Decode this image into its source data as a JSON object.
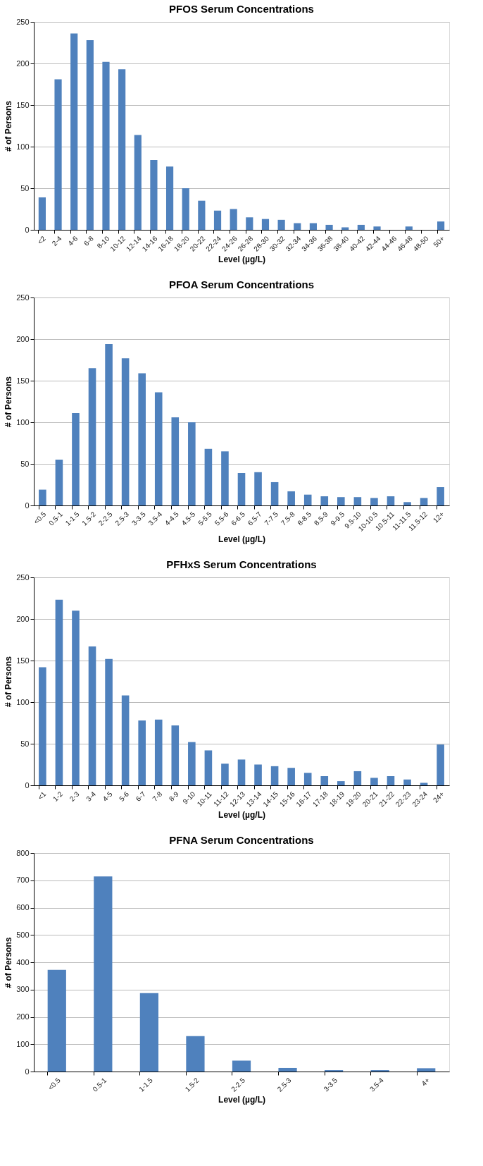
{
  "chart_data": [
    {
      "type": "bar",
      "title": "PFOS Serum Concentrations",
      "xlabel": "Level (µg/L)",
      "ylabel": "# of Persons",
      "categories": [
        "<2",
        "2-4",
        "4-6",
        "6-8",
        "8-10",
        "10-12",
        "12-14",
        "14-16",
        "16-18",
        "18-20",
        "20-22",
        "22-24",
        "24-26",
        "26-28",
        "28-30",
        "30-32",
        "32-34",
        "34-36",
        "36-38",
        "38-40",
        "40-42",
        "42-44",
        "44-46",
        "46-48",
        "48-50",
        "50+"
      ],
      "series": [
        {
          "color": "#4f81bd",
          "values": [
            39,
            181,
            236,
            228,
            202,
            193,
            114,
            84,
            76,
            50,
            35,
            23,
            25,
            15,
            13,
            12,
            8,
            8,
            6,
            3,
            6,
            4,
            0,
            4,
            0,
            10
          ]
        }
      ],
      "ylim": [
        0,
        250
      ],
      "yticks": [
        0,
        50,
        100,
        150,
        200,
        250
      ],
      "grid": "y"
    },
    {
      "type": "bar",
      "title": "PFOA Serum Concentrations",
      "xlabel": "Level (µg/L)",
      "ylabel": "# of Persons",
      "categories": [
        "<0.5",
        "0.5-1",
        "1-1.5",
        "1.5-2",
        "2-2.5",
        "2.5-3",
        "3-3.5",
        "3.5-4",
        "4-4.5",
        "4.5-5",
        "5-5.5",
        "5.5-6",
        "6-6.5",
        "6.5-7",
        "7-7.5",
        "7.5-8",
        "8-8.5",
        "8.5-9",
        "9-9.5",
        "9.5-10",
        "10-10.5",
        "10.5-11",
        "11-11.5",
        "11.5-12",
        "12+"
      ],
      "series": [
        {
          "color": "#4f81bd",
          "values": [
            19,
            55,
            111,
            165,
            194,
            177,
            159,
            136,
            106,
            100,
            68,
            65,
            39,
            40,
            28,
            17,
            13,
            11,
            10,
            10,
            9,
            11,
            4,
            9,
            22
          ]
        }
      ],
      "ylim": [
        0,
        250
      ],
      "yticks": [
        0,
        50,
        100,
        150,
        200,
        250
      ],
      "grid": "y"
    },
    {
      "type": "bar",
      "title": "PFHxS Serum Concentrations",
      "xlabel": "Level (µg/L)",
      "ylabel": "# of Persons",
      "categories": [
        "<1",
        "1-2",
        "2-3",
        "3-4",
        "4-5",
        "5-6",
        "6-7",
        "7-8",
        "8-9",
        "9-10",
        "10-11",
        "11-12",
        "12-13",
        "13-14",
        "14-15",
        "15-16",
        "16-17",
        "17-18",
        "18-19",
        "19-20",
        "20-21",
        "21-22",
        "22-23",
        "23-24",
        "24+"
      ],
      "series": [
        {
          "color": "#4f81bd",
          "values": [
            142,
            223,
            210,
            167,
            152,
            108,
            78,
            79,
            72,
            52,
            42,
            26,
            31,
            25,
            23,
            21,
            15,
            11,
            5,
            17,
            9,
            11,
            7,
            3,
            49
          ]
        }
      ],
      "ylim": [
        0,
        250
      ],
      "yticks": [
        0,
        50,
        100,
        150,
        200,
        250
      ],
      "grid": "y"
    },
    {
      "type": "bar",
      "title": "PFNA Serum Concentrations",
      "xlabel": "Level (µg/L)",
      "ylabel": "# of Persons",
      "categories": [
        "<0.5",
        "0.5-1",
        "1-1.5",
        "1.5-2",
        "2-2.5",
        "2.5-3",
        "3-3.5",
        "3.5-4",
        "4+"
      ],
      "series": [
        {
          "color": "#4f81bd",
          "values": [
            372,
            714,
            287,
            130,
            40,
            13,
            5,
            5,
            12
          ]
        }
      ],
      "ylim": [
        0,
        800
      ],
      "yticks": [
        0,
        100,
        200,
        300,
        400,
        500,
        600,
        700,
        800
      ],
      "grid": "y"
    }
  ]
}
